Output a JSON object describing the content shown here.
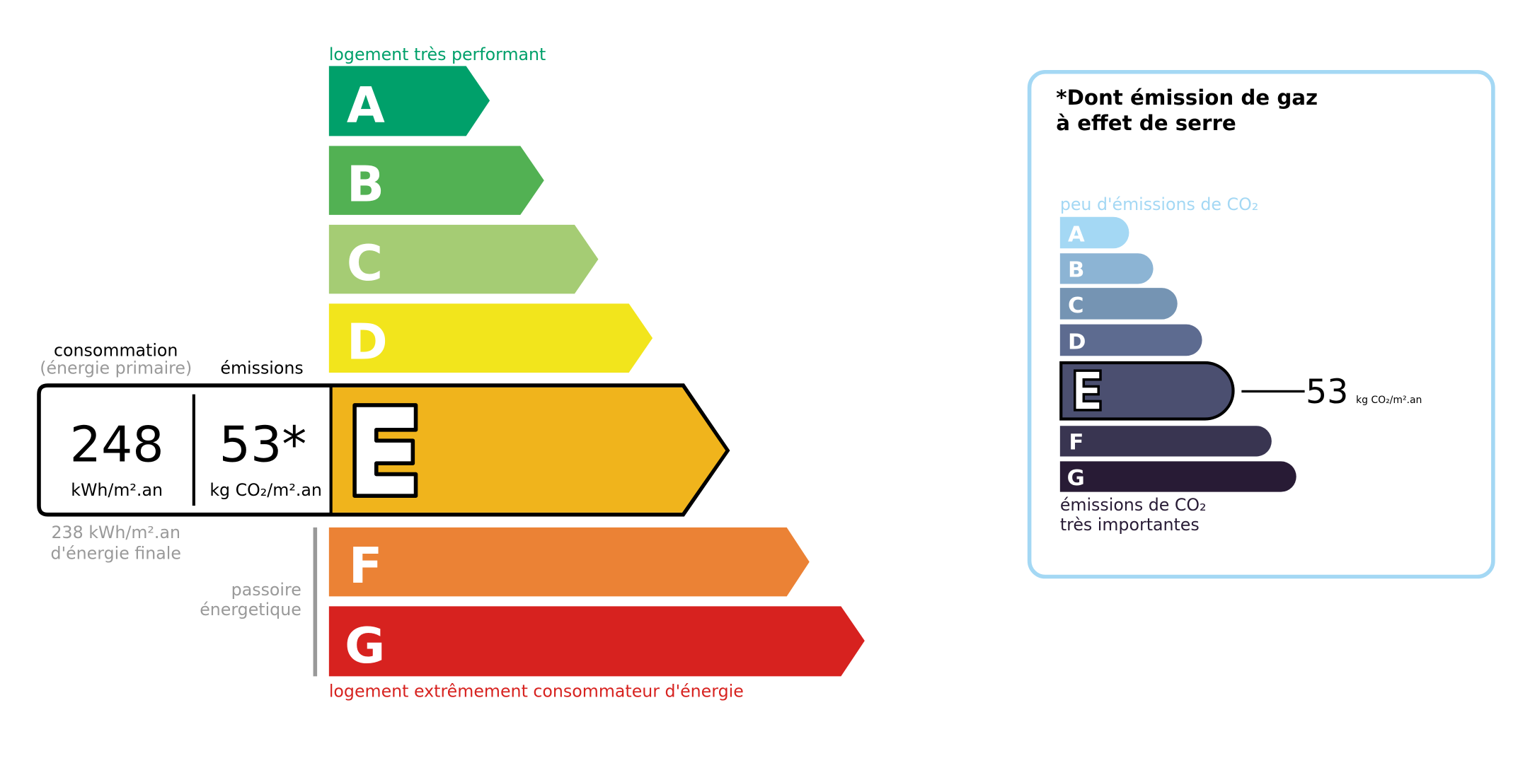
{
  "energy": {
    "top_label": "logement très performant",
    "bottom_label": "logement extrêmement consommateur d'énergie",
    "classes": [
      {
        "letter": "A",
        "color": "#00a06a"
      },
      {
        "letter": "B",
        "color": "#52b153"
      },
      {
        "letter": "C",
        "color": "#a5cc74"
      },
      {
        "letter": "D",
        "color": "#f2e51c"
      },
      {
        "letter": "E",
        "color": "#f0b41c"
      },
      {
        "letter": "F",
        "color": "#eb8235"
      },
      {
        "letter": "G",
        "color": "#d7221f"
      }
    ],
    "current_class": "E",
    "consumption_header": "consommation",
    "consumption_subheader": "(énergie primaire)",
    "emissions_header": "émissions",
    "consumption_value": "248",
    "consumption_unit": "kWh/m².an",
    "emissions_value": "53*",
    "emissions_unit": "kg CO₂/m².an",
    "final_energy_line1": "238 kWh/m².an",
    "final_energy_line2": "d'énergie finale",
    "passoire_line1": "passoire",
    "passoire_line2": "énergetique"
  },
  "ghg": {
    "title_line1": "*Dont émission de gaz",
    "title_line2": "à effet de serre",
    "top_label": "peu d'émissions de CO₂",
    "bottom_label_line1": "émissions de CO₂",
    "bottom_label_line2": "très importantes",
    "classes": [
      {
        "letter": "A",
        "color": "#a4d8f4"
      },
      {
        "letter": "B",
        "color": "#8cb4d4"
      },
      {
        "letter": "C",
        "color": "#7594b3"
      },
      {
        "letter": "D",
        "color": "#5d6b90"
      },
      {
        "letter": "E",
        "color": "#4b4f70"
      },
      {
        "letter": "F",
        "color": "#393551"
      },
      {
        "letter": "G",
        "color": "#281b35"
      }
    ],
    "current_class": "E",
    "value": "53",
    "unit": "kg CO₂/m².an",
    "border_color": "#a4d8f4"
  }
}
